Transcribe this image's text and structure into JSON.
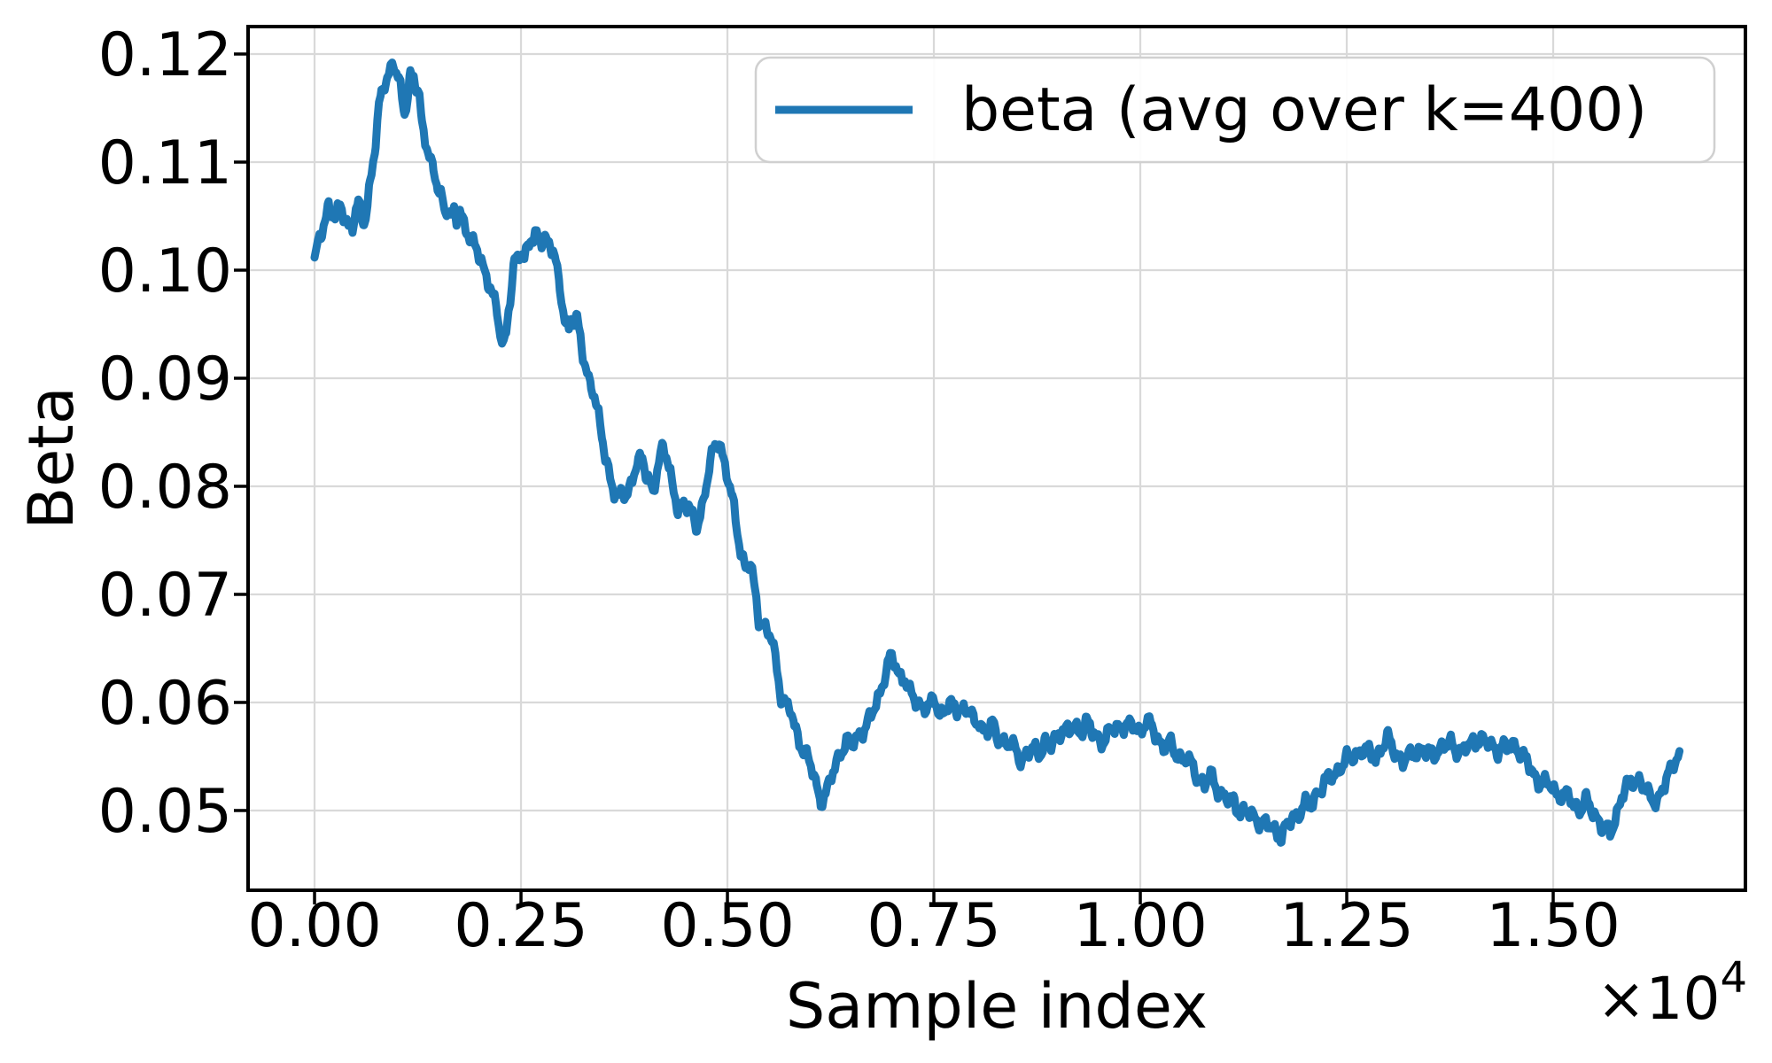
{
  "figure": {
    "background": "#ffffff"
  },
  "chart_data": {
    "type": "line",
    "title": "",
    "xlabel": "Sample index",
    "ylabel": "Beta",
    "offset": {
      "base": "×10",
      "exponent": "4"
    },
    "x_scale_factor": 10000,
    "legend": {
      "label": "beta (avg over k=400)",
      "position": "upper right"
    },
    "line_color": "#1f77b4",
    "grid": true,
    "grid_color": "#d9d9d9",
    "spine_color": "#000000",
    "xlim": [
      -0.0805,
      1.7328
    ],
    "ylim": [
      0.04262,
      0.12254
    ],
    "xticks": [
      0.0,
      0.25,
      0.5,
      0.75,
      1.0,
      1.25,
      1.5
    ],
    "xtick_labels": [
      "0.00",
      "0.25",
      "0.50",
      "0.75",
      "1.00",
      "1.25",
      "1.50"
    ],
    "yticks": [
      0.05,
      0.06,
      0.07,
      0.08,
      0.09,
      0.1,
      0.11,
      0.12
    ],
    "ytick_labels": [
      "0.05",
      "0.06",
      "0.07",
      "0.08",
      "0.09",
      "0.10",
      "0.11",
      "0.12"
    ],
    "series": [
      {
        "name": "beta (avg over k=400)",
        "points": [
          [
            0.0,
            0.1007
          ],
          [
            0.004,
            0.1022
          ],
          [
            0.009,
            0.1037
          ],
          [
            0.014,
            0.1052
          ],
          [
            0.017,
            0.106
          ],
          [
            0.021,
            0.1052
          ],
          [
            0.026,
            0.1047
          ],
          [
            0.031,
            0.106
          ],
          [
            0.035,
            0.1052
          ],
          [
            0.041,
            0.1042
          ],
          [
            0.046,
            0.104
          ],
          [
            0.05,
            0.1053
          ],
          [
            0.053,
            0.106
          ],
          [
            0.057,
            0.105
          ],
          [
            0.06,
            0.1045
          ],
          [
            0.064,
            0.1061
          ],
          [
            0.067,
            0.108
          ],
          [
            0.071,
            0.11
          ],
          [
            0.074,
            0.1117
          ],
          [
            0.078,
            0.1149
          ],
          [
            0.081,
            0.1164
          ],
          [
            0.085,
            0.1176
          ],
          [
            0.088,
            0.1179
          ],
          [
            0.092,
            0.1186
          ],
          [
            0.095,
            0.1191
          ],
          [
            0.099,
            0.1181
          ],
          [
            0.102,
            0.1176
          ],
          [
            0.106,
            0.1159
          ],
          [
            0.109,
            0.1147
          ],
          [
            0.113,
            0.1164
          ],
          [
            0.116,
            0.1181
          ],
          [
            0.12,
            0.1176
          ],
          [
            0.123,
            0.1169
          ],
          [
            0.127,
            0.1159
          ],
          [
            0.13,
            0.1134
          ],
          [
            0.134,
            0.1124
          ],
          [
            0.139,
            0.1107
          ],
          [
            0.144,
            0.109
          ],
          [
            0.149,
            0.1075
          ],
          [
            0.155,
            0.1065
          ],
          [
            0.158,
            0.1055
          ],
          [
            0.162,
            0.106
          ],
          [
            0.165,
            0.1048
          ],
          [
            0.169,
            0.1052
          ],
          [
            0.172,
            0.1045
          ],
          [
            0.176,
            0.1055
          ],
          [
            0.179,
            0.1047
          ],
          [
            0.184,
            0.104
          ],
          [
            0.19,
            0.1027
          ],
          [
            0.195,
            0.102
          ],
          [
            0.2,
            0.1012
          ],
          [
            0.206,
            0.1
          ],
          [
            0.211,
            0.099
          ],
          [
            0.216,
            0.0975
          ],
          [
            0.221,
            0.096
          ],
          [
            0.225,
            0.094
          ],
          [
            0.229,
            0.0931
          ],
          [
            0.232,
            0.0945
          ],
          [
            0.235,
            0.0965
          ],
          [
            0.239,
            0.0985
          ],
          [
            0.242,
            0.1005
          ],
          [
            0.246,
            0.101
          ],
          [
            0.249,
            0.1017
          ],
          [
            0.254,
            0.1012
          ],
          [
            0.258,
            0.1025
          ],
          [
            0.261,
            0.103
          ],
          [
            0.265,
            0.1025
          ],
          [
            0.27,
            0.1032
          ],
          [
            0.275,
            0.1027
          ],
          [
            0.28,
            0.103
          ],
          [
            0.285,
            0.1025
          ],
          [
            0.289,
            0.1015
          ],
          [
            0.292,
            0.1005
          ],
          [
            0.297,
            0.0985
          ],
          [
            0.301,
            0.0965
          ],
          [
            0.304,
            0.0952
          ],
          [
            0.308,
            0.0947
          ],
          [
            0.311,
            0.0955
          ],
          [
            0.315,
            0.0947
          ],
          [
            0.318,
            0.0952
          ],
          [
            0.322,
            0.094
          ],
          [
            0.325,
            0.0925
          ],
          [
            0.328,
            0.091
          ],
          [
            0.332,
            0.09
          ],
          [
            0.335,
            0.0893
          ],
          [
            0.339,
            0.088
          ],
          [
            0.342,
            0.087
          ],
          [
            0.346,
            0.0858
          ],
          [
            0.349,
            0.0845
          ],
          [
            0.352,
            0.083
          ],
          [
            0.356,
            0.0815
          ],
          [
            0.359,
            0.0803
          ],
          [
            0.363,
            0.0792
          ],
          [
            0.367,
            0.0786
          ],
          [
            0.373,
            0.08
          ],
          [
            0.377,
            0.0792
          ],
          [
            0.381,
            0.0796
          ],
          [
            0.392,
            0.0822
          ],
          [
            0.397,
            0.083
          ],
          [
            0.402,
            0.0812
          ],
          [
            0.41,
            0.0792
          ],
          [
            0.415,
            0.0812
          ],
          [
            0.422,
            0.0842
          ],
          [
            0.427,
            0.0827
          ],
          [
            0.433,
            0.08
          ],
          [
            0.44,
            0.0777
          ],
          [
            0.447,
            0.0787
          ],
          [
            0.453,
            0.0782
          ],
          [
            0.458,
            0.077
          ],
          [
            0.463,
            0.076
          ],
          [
            0.469,
            0.078
          ],
          [
            0.474,
            0.0802
          ],
          [
            0.479,
            0.0822
          ],
          [
            0.485,
            0.0835
          ],
          [
            0.49,
            0.0842
          ],
          [
            0.495,
            0.0827
          ],
          [
            0.501,
            0.0807
          ],
          [
            0.506,
            0.0787
          ],
          [
            0.512,
            0.0757
          ],
          [
            0.517,
            0.0737
          ],
          [
            0.522,
            0.0727
          ],
          [
            0.528,
            0.0729
          ],
          [
            0.533,
            0.0702
          ],
          [
            0.538,
            0.0677
          ],
          [
            0.544,
            0.0672
          ],
          [
            0.549,
            0.0667
          ],
          [
            0.554,
            0.0657
          ],
          [
            0.56,
            0.0629
          ],
          [
            0.565,
            0.0607
          ],
          [
            0.571,
            0.06
          ],
          [
            0.576,
            0.0595
          ],
          [
            0.581,
            0.0575
          ],
          [
            0.587,
            0.0565
          ],
          [
            0.592,
            0.0557
          ],
          [
            0.597,
            0.0552
          ],
          [
            0.603,
            0.0535
          ],
          [
            0.608,
            0.052
          ],
          [
            0.613,
            0.051
          ],
          [
            0.619,
            0.0516
          ],
          [
            0.624,
            0.0527
          ],
          [
            0.63,
            0.0537
          ],
          [
            0.635,
            0.055
          ],
          [
            0.64,
            0.056
          ],
          [
            0.646,
            0.0566
          ],
          [
            0.651,
            0.056
          ],
          [
            0.656,
            0.0565
          ],
          [
            0.662,
            0.0572
          ],
          [
            0.668,
            0.058
          ],
          [
            0.674,
            0.0586
          ],
          [
            0.68,
            0.0598
          ],
          [
            0.685,
            0.061
          ],
          [
            0.69,
            0.0625
          ],
          [
            0.697,
            0.0641
          ],
          [
            0.702,
            0.0637
          ],
          [
            0.708,
            0.0625
          ],
          [
            0.715,
            0.0623
          ],
          [
            0.721,
            0.0608
          ],
          [
            0.728,
            0.06
          ],
          [
            0.735,
            0.0597
          ],
          [
            0.745,
            0.0596
          ],
          [
            0.751,
            0.0602
          ],
          [
            0.757,
            0.0589
          ],
          [
            0.767,
            0.0597
          ],
          [
            0.778,
            0.0594
          ],
          [
            0.789,
            0.0596
          ],
          [
            0.794,
            0.0589
          ],
          [
            0.799,
            0.058
          ],
          [
            0.805,
            0.0584
          ],
          [
            0.81,
            0.0574
          ],
          [
            0.815,
            0.0572
          ],
          [
            0.821,
            0.058
          ],
          [
            0.826,
            0.0569
          ],
          [
            0.831,
            0.0566
          ],
          [
            0.837,
            0.0562
          ],
          [
            0.842,
            0.056
          ],
          [
            0.849,
            0.0557
          ],
          [
            0.856,
            0.0547
          ],
          [
            0.863,
            0.0552
          ],
          [
            0.871,
            0.0557
          ],
          [
            0.878,
            0.0554
          ],
          [
            0.885,
            0.0563
          ],
          [
            0.892,
            0.0559
          ],
          [
            0.899,
            0.0569
          ],
          [
            0.906,
            0.0577
          ],
          [
            0.914,
            0.0572
          ],
          [
            0.921,
            0.0577
          ],
          [
            0.928,
            0.0574
          ],
          [
            0.935,
            0.0582
          ],
          [
            0.942,
            0.0572
          ],
          [
            0.949,
            0.0567
          ],
          [
            0.956,
            0.0564
          ],
          [
            0.963,
            0.0572
          ],
          [
            0.971,
            0.0577
          ],
          [
            0.978,
            0.0579
          ],
          [
            0.985,
            0.0577
          ],
          [
            0.992,
            0.0579
          ],
          [
            1.0,
            0.0574
          ],
          [
            1.007,
            0.0582
          ],
          [
            1.014,
            0.0577
          ],
          [
            1.021,
            0.0567
          ],
          [
            1.028,
            0.0559
          ],
          [
            1.035,
            0.0562
          ],
          [
            1.042,
            0.0554
          ],
          [
            1.049,
            0.0549
          ],
          [
            1.057,
            0.0547
          ],
          [
            1.064,
            0.0539
          ],
          [
            1.071,
            0.0529
          ],
          [
            1.078,
            0.0524
          ],
          [
            1.085,
            0.0532
          ],
          [
            1.092,
            0.0522
          ],
          [
            1.1,
            0.0514
          ],
          [
            1.107,
            0.0509
          ],
          [
            1.114,
            0.0507
          ],
          [
            1.121,
            0.0499
          ],
          [
            1.128,
            0.0499
          ],
          [
            1.135,
            0.0494
          ],
          [
            1.142,
            0.0492
          ],
          [
            1.15,
            0.0489
          ],
          [
            1.157,
            0.0484
          ],
          [
            1.164,
            0.0481
          ],
          [
            1.171,
            0.0477
          ],
          [
            1.178,
            0.0486
          ],
          [
            1.185,
            0.0492
          ],
          [
            1.192,
            0.0499
          ],
          [
            1.2,
            0.0507
          ],
          [
            1.207,
            0.0502
          ],
          [
            1.214,
            0.0517
          ],
          [
            1.221,
            0.0524
          ],
          [
            1.228,
            0.0529
          ],
          [
            1.235,
            0.0532
          ],
          [
            1.243,
            0.0542
          ],
          [
            1.25,
            0.0547
          ],
          [
            1.257,
            0.0549
          ],
          [
            1.264,
            0.0554
          ],
          [
            1.271,
            0.0557
          ],
          [
            1.278,
            0.0552
          ],
          [
            1.285,
            0.0549
          ],
          [
            1.293,
            0.0559
          ],
          [
            1.3,
            0.0566
          ],
          [
            1.304,
            0.056
          ],
          [
            1.311,
            0.0552
          ],
          [
            1.318,
            0.0545
          ],
          [
            1.325,
            0.0549
          ],
          [
            1.333,
            0.0554
          ],
          [
            1.34,
            0.0557
          ],
          [
            1.347,
            0.0552
          ],
          [
            1.354,
            0.0552
          ],
          [
            1.361,
            0.0557
          ],
          [
            1.368,
            0.0559
          ],
          [
            1.376,
            0.0562
          ],
          [
            1.383,
            0.0557
          ],
          [
            1.39,
            0.0554
          ],
          [
            1.397,
            0.0559
          ],
          [
            1.404,
            0.0564
          ],
          [
            1.411,
            0.0567
          ],
          [
            1.419,
            0.0562
          ],
          [
            1.426,
            0.0559
          ],
          [
            1.433,
            0.0557
          ],
          [
            1.44,
            0.0559
          ],
          [
            1.447,
            0.0557
          ],
          [
            1.454,
            0.0562
          ],
          [
            1.462,
            0.0552
          ],
          [
            1.469,
            0.0544
          ],
          [
            1.476,
            0.0534
          ],
          [
            1.483,
            0.0527
          ],
          [
            1.49,
            0.0524
          ],
          [
            1.497,
            0.0524
          ],
          [
            1.504,
            0.0517
          ],
          [
            1.512,
            0.0512
          ],
          [
            1.519,
            0.0514
          ],
          [
            1.526,
            0.0505
          ],
          [
            1.533,
            0.05
          ],
          [
            1.54,
            0.0508
          ],
          [
            1.55,
            0.0498
          ],
          [
            1.559,
            0.0485
          ],
          [
            1.569,
            0.0479
          ],
          [
            1.575,
            0.0493
          ],
          [
            1.583,
            0.0512
          ],
          [
            1.59,
            0.0523
          ],
          [
            1.597,
            0.053
          ],
          [
            1.604,
            0.0528
          ],
          [
            1.611,
            0.0519
          ],
          [
            1.618,
            0.0512
          ],
          [
            1.626,
            0.051
          ],
          [
            1.633,
            0.0518
          ],
          [
            1.64,
            0.0534
          ],
          [
            1.647,
            0.0548
          ],
          [
            1.653,
            0.0555
          ]
        ]
      }
    ]
  }
}
